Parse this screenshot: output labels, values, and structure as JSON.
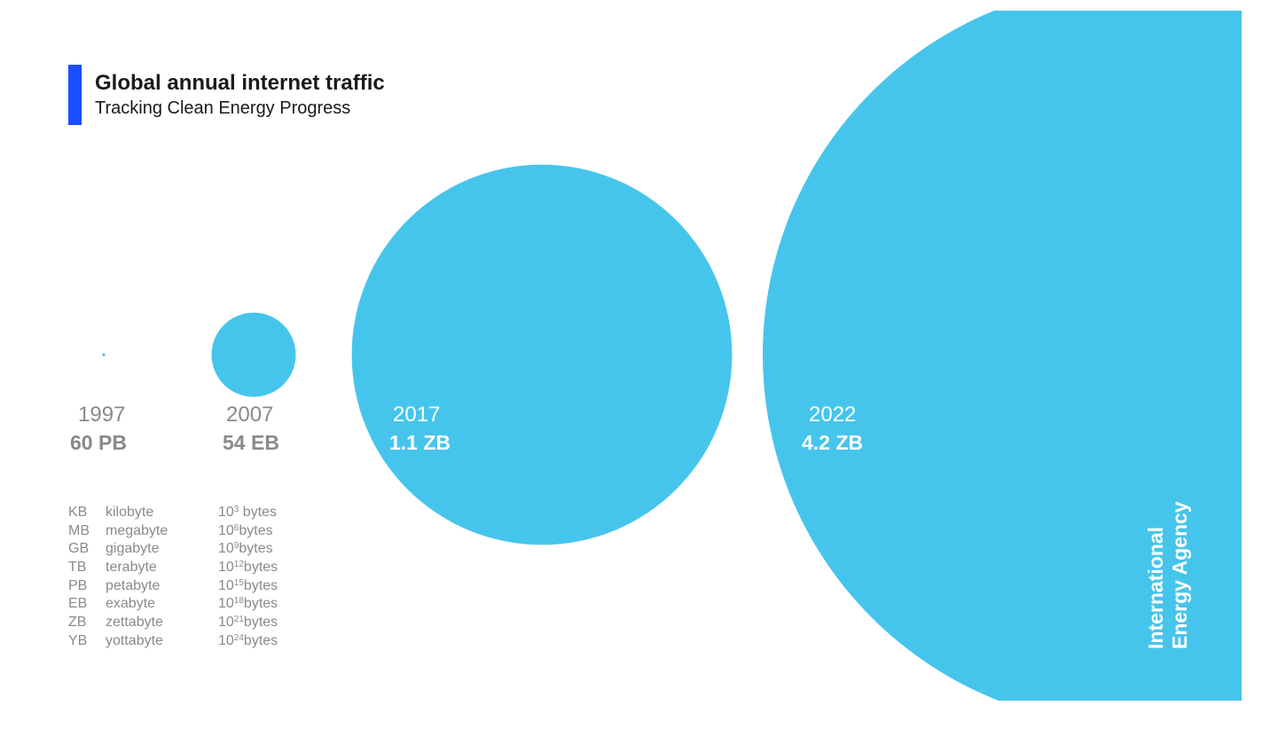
{
  "header": {
    "title": "Global annual internet traffic",
    "subtitle": "Tracking Clean Energy Progress"
  },
  "chart_data": {
    "type": "bubble",
    "title": "Global annual internet traffic",
    "subtitle": "Tracking Clean Energy Progress",
    "bubble_color": "#46c5ec",
    "accent_color": "#1a4dff",
    "points": [
      {
        "year": "1997",
        "label": "60 PB",
        "value": 0.06,
        "unit": "EB"
      },
      {
        "year": "2007",
        "label": "54 EB",
        "value": 54,
        "unit": "EB"
      },
      {
        "year": "2017",
        "label": "1.1 ZB",
        "value": 1100,
        "unit": "EB"
      },
      {
        "year": "2022",
        "label": "4.2 ZB",
        "value": 4200,
        "unit": "EB"
      }
    ]
  },
  "units_table": [
    {
      "abbr": "KB",
      "name": "kilobyte",
      "base": "10",
      "exp": "3",
      "suffix": " bytes"
    },
    {
      "abbr": "MB",
      "name": "megabyte",
      "base": "10",
      "exp": "6",
      "suffix": "bytes"
    },
    {
      "abbr": "GB",
      "name": "gigabyte",
      "base": "10",
      "exp": "9",
      "suffix": "bytes"
    },
    {
      "abbr": "TB",
      "name": "terabyte",
      "base": "10",
      "exp": "12",
      "suffix": "bytes"
    },
    {
      "abbr": "PB",
      "name": "petabyte",
      "base": "10",
      "exp": "15",
      "suffix": "bytes"
    },
    {
      "abbr": "EB",
      "name": "exabyte",
      "base": "10",
      "exp": "18",
      "suffix": "bytes"
    },
    {
      "abbr": "ZB",
      "name": "zettabyte",
      "base": "10",
      "exp": "21",
      "suffix": "bytes"
    },
    {
      "abbr": "YB",
      "name": "yottabyte",
      "base": "10",
      "exp": "24",
      "suffix": "bytes"
    }
  ],
  "brand": {
    "line1": "International",
    "line2": "Energy Agency"
  }
}
